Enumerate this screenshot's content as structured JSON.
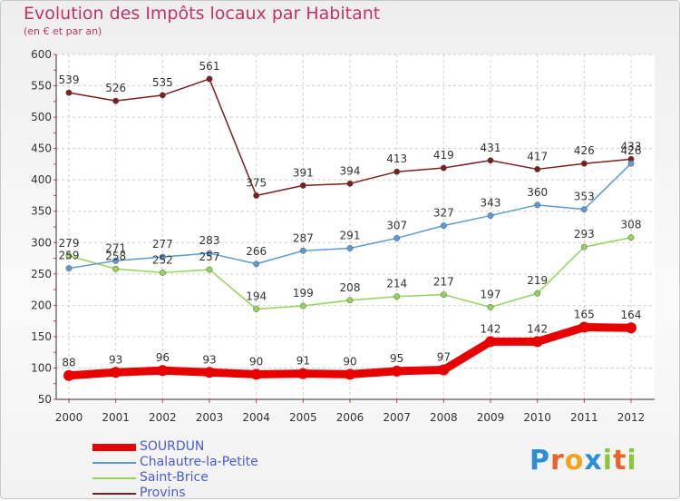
{
  "header": {
    "title": "Evolution des Impôts locaux par Habitant",
    "subtitle": "(en € et par an)"
  },
  "brand": {
    "letters": [
      {
        "ch": "P",
        "color": "#2c8fd6"
      },
      {
        "ch": "r",
        "color": "#e8622a"
      },
      {
        "ch": "o",
        "color": "#f2a51a"
      },
      {
        "ch": "x",
        "color": "#2c8fd6"
      },
      {
        "ch": "i",
        "color": "#8cc63f"
      },
      {
        "ch": "t",
        "color": "#e8622a"
      },
      {
        "ch": "i",
        "color": "#8cc63f"
      }
    ]
  },
  "chart_data": {
    "type": "line",
    "title": "Evolution des Impôts locaux par Habitant",
    "subtitle": "(en € et par an)",
    "xlabel": "",
    "ylabel": "",
    "ylim": [
      50,
      600
    ],
    "yticks": [
      50,
      100,
      150,
      200,
      250,
      300,
      350,
      400,
      450,
      500,
      550,
      600
    ],
    "grid": true,
    "legend_position": "bottom-left",
    "x": [
      "2000",
      "2001",
      "2002",
      "2003",
      "2004",
      "2005",
      "2006",
      "2007",
      "2008",
      "2009",
      "2010",
      "2011",
      "2012"
    ],
    "series": [
      {
        "name": "SOURDUN",
        "color": "#e80000",
        "values": [
          88,
          93,
          96,
          93,
          90,
          91,
          90,
          95,
          97,
          142,
          142,
          165,
          164
        ]
      },
      {
        "name": "Chalautre-la-Petite",
        "color": "#5b9bd5",
        "values": [
          259,
          271,
          277,
          283,
          266,
          287,
          291,
          307,
          327,
          343,
          360,
          353,
          426
        ]
      },
      {
        "name": "Saint-Brice",
        "color": "#93d35a",
        "values": [
          279,
          258,
          252,
          257,
          194,
          199,
          208,
          214,
          217,
          197,
          219,
          293,
          308
        ]
      },
      {
        "name": "Provins",
        "color": "#7a1f1f",
        "values": [
          539,
          526,
          535,
          561,
          375,
          391,
          394,
          413,
          419,
          431,
          417,
          426,
          433
        ]
      }
    ],
    "point_labels": [
      [
        "88",
        "93",
        "96",
        "93",
        "90",
        "91",
        "90",
        "95",
        "97",
        "142",
        "142",
        "165",
        "164"
      ],
      [
        "259",
        "271",
        "277",
        "283",
        "266",
        "287",
        "291",
        "307",
        "327",
        "343",
        "360",
        "353",
        "426"
      ],
      [
        "279",
        "258",
        "252",
        "257",
        "194",
        "199",
        "208",
        "214",
        "217",
        "197",
        "219",
        "293",
        "308"
      ],
      [
        "539",
        "526",
        "535",
        "561",
        "375",
        "391",
        "394",
        "413",
        "419",
        "431",
        "417",
        "426",
        "433"
      ]
    ]
  }
}
